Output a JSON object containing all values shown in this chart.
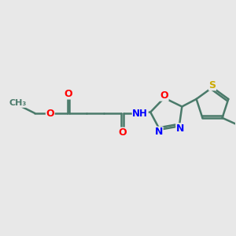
{
  "bg_color": "#e8e8e8",
  "bond_color": "#4a7a6a",
  "bond_width": 1.8,
  "atom_colors": {
    "O": "#ff0000",
    "N": "#0000ff",
    "S": "#ccaa00",
    "C": "#4a7a6a",
    "H": "#4a7a6a"
  },
  "font_size": 9
}
